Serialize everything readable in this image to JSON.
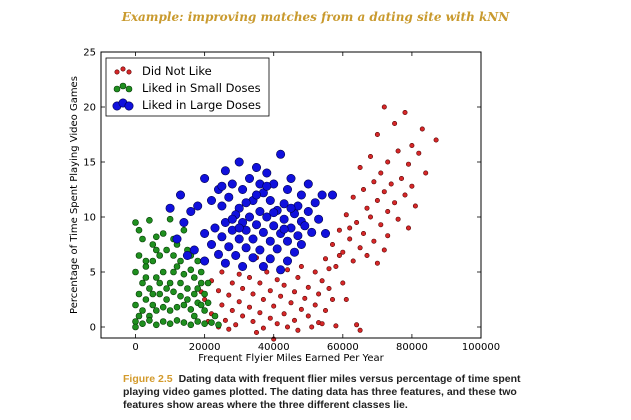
{
  "header": "Example: improving matches from a dating site with kNN",
  "caption": {
    "figure_label": "Figure 2.5",
    "text": "Dating data with frequent flier miles versus percentage of time spent playing video games plotted. The dating data has three features, and these two features show areas where the three different classes lie."
  },
  "chart_data": {
    "type": "scatter",
    "xlabel": "Frequent Flyier Miles Earned Per Year",
    "ylabel": "Percentage of Time Spent Playing Video Games",
    "xlim": [
      -10000,
      100000
    ],
    "ylim": [
      -1,
      25
    ],
    "xticks": [
      0,
      20000,
      40000,
      60000,
      80000,
      100000
    ],
    "yticks": [
      0,
      5,
      10,
      15,
      20,
      25
    ],
    "grid": false,
    "legend_position": "top-left",
    "series": [
      {
        "name": "Did Not Like",
        "color": "#d62728",
        "size": "small",
        "points": [
          [
            72000,
            20
          ],
          [
            78000,
            19.5
          ],
          [
            75000,
            18.5
          ],
          [
            83000,
            18
          ],
          [
            70000,
            17.5
          ],
          [
            87000,
            17
          ],
          [
            80000,
            16.5
          ],
          [
            76000,
            16
          ],
          [
            82000,
            15.8
          ],
          [
            68000,
            15.5
          ],
          [
            73000,
            15
          ],
          [
            79000,
            14.8
          ],
          [
            65000,
            14.5
          ],
          [
            71000,
            14
          ],
          [
            84000,
            14
          ],
          [
            77000,
            13.5
          ],
          [
            69000,
            13.2
          ],
          [
            74000,
            13
          ],
          [
            80000,
            12.8
          ],
          [
            66000,
            12.5
          ],
          [
            72000,
            12.3
          ],
          [
            78000,
            12
          ],
          [
            63000,
            11.8
          ],
          [
            70000,
            11.5
          ],
          [
            75000,
            11.3
          ],
          [
            81000,
            11
          ],
          [
            67000,
            10.8
          ],
          [
            73000,
            10.5
          ],
          [
            61000,
            10.2
          ],
          [
            68000,
            10
          ],
          [
            76000,
            9.8
          ],
          [
            64000,
            9.5
          ],
          [
            71000,
            9.3
          ],
          [
            79000,
            9
          ],
          [
            59000,
            8.8
          ],
          [
            66000,
            8.5
          ],
          [
            73000,
            8.3
          ],
          [
            62000,
            8
          ],
          [
            69000,
            7.8
          ],
          [
            57000,
            7.5
          ],
          [
            65000,
            7.2
          ],
          [
            72000,
            7
          ],
          [
            60000,
            6.8
          ],
          [
            67000,
            6.5
          ],
          [
            55000,
            6.2
          ],
          [
            63000,
            6
          ],
          [
            70000,
            5.8
          ],
          [
            58000,
            5.5
          ],
          [
            48000,
            5.5
          ],
          [
            52000,
            5
          ],
          [
            44000,
            5.2
          ],
          [
            38000,
            5
          ],
          [
            30000,
            4.8
          ],
          [
            25000,
            5
          ],
          [
            33000,
            4.5
          ],
          [
            41000,
            4.3
          ],
          [
            47000,
            4.5
          ],
          [
            54000,
            4.2
          ],
          [
            60000,
            4
          ],
          [
            36000,
            4
          ],
          [
            28000,
            4
          ],
          [
            22000,
            4.2
          ],
          [
            43000,
            3.8
          ],
          [
            50000,
            3.6
          ],
          [
            56000,
            3.5
          ],
          [
            31000,
            3.5
          ],
          [
            39000,
            3.3
          ],
          [
            24000,
            3.3
          ],
          [
            46000,
            3.2
          ],
          [
            53000,
            3
          ],
          [
            34000,
            3
          ],
          [
            27000,
            2.9
          ],
          [
            42000,
            2.8
          ],
          [
            49000,
            2.6
          ],
          [
            57000,
            2.5
          ],
          [
            20000,
            2.5
          ],
          [
            37000,
            2.5
          ],
          [
            30000,
            2.3
          ],
          [
            45000,
            2.2
          ],
          [
            52000,
            2
          ],
          [
            25000,
            2
          ],
          [
            40000,
            1.9
          ],
          [
            33000,
            1.8
          ],
          [
            48000,
            1.6
          ],
          [
            55000,
            1.5
          ],
          [
            28000,
            1.5
          ],
          [
            36000,
            1.3
          ],
          [
            43000,
            1.2
          ],
          [
            22000,
            1.2
          ],
          [
            50000,
            1
          ],
          [
            31000,
            1
          ],
          [
            39000,
            0.8
          ],
          [
            46000,
            0.6
          ],
          [
            26000,
            0.6
          ],
          [
            34000,
            0.5
          ],
          [
            53000,
            0.4
          ],
          [
            41000,
            0.3
          ],
          [
            29000,
            0.2
          ],
          [
            58000,
            0.1
          ],
          [
            37000,
            -0.1
          ],
          [
            44000,
            0
          ],
          [
            24000,
            0
          ],
          [
            51000,
            0
          ],
          [
            64000,
            0.2
          ],
          [
            65000,
            -0.3
          ],
          [
            54000,
            0.3
          ],
          [
            47000,
            -0.3
          ],
          [
            27000,
            -0.2
          ],
          [
            35000,
            -0.5
          ],
          [
            40000,
            -1.1
          ],
          [
            61000,
            2.5
          ],
          [
            59000,
            6.5
          ],
          [
            62000,
            9
          ],
          [
            35000,
            6.3
          ],
          [
            19000,
            3.2
          ],
          [
            21000,
            0.5
          ],
          [
            56000,
            5.3
          ]
        ]
      },
      {
        "name": "Liked in Small Doses",
        "color": "#1f8f1f",
        "size": "medium",
        "points": [
          [
            0,
            9.5
          ],
          [
            2000,
            8
          ],
          [
            4000,
            9.7
          ],
          [
            6000,
            7
          ],
          [
            1000,
            6.5
          ],
          [
            3000,
            5.5
          ],
          [
            5000,
            6
          ],
          [
            8000,
            8.5
          ],
          [
            10000,
            9.8
          ],
          [
            12000,
            7.5
          ],
          [
            14000,
            8.8
          ],
          [
            16000,
            6.5
          ],
          [
            0,
            5
          ],
          [
            2000,
            4
          ],
          [
            4000,
            3.5
          ],
          [
            6000,
            4.5
          ],
          [
            8000,
            5
          ],
          [
            10000,
            4
          ],
          [
            12000,
            5.5
          ],
          [
            14000,
            4.8
          ],
          [
            16000,
            5.2
          ],
          [
            18000,
            6
          ],
          [
            1000,
            3
          ],
          [
            3000,
            2.5
          ],
          [
            5000,
            2
          ],
          [
            7000,
            3
          ],
          [
            9000,
            2.5
          ],
          [
            11000,
            3.2
          ],
          [
            13000,
            2.8
          ],
          [
            15000,
            3.5
          ],
          [
            17000,
            3
          ],
          [
            19000,
            4
          ],
          [
            20000,
            3
          ],
          [
            0,
            2
          ],
          [
            2000,
            1.5
          ],
          [
            4000,
            1
          ],
          [
            6000,
            1.5
          ],
          [
            8000,
            1.8
          ],
          [
            10000,
            1.5
          ],
          [
            12000,
            1.8
          ],
          [
            14000,
            2
          ],
          [
            16000,
            1.6
          ],
          [
            18000,
            2.2
          ],
          [
            0,
            0.5
          ],
          [
            2000,
            0.3
          ],
          [
            4000,
            0.6
          ],
          [
            6000,
            0.2
          ],
          [
            8000,
            0.5
          ],
          [
            10000,
            0.3
          ],
          [
            12000,
            0.6
          ],
          [
            14000,
            0.4
          ],
          [
            16000,
            0.2
          ],
          [
            18000,
            0.5
          ],
          [
            20000,
            0.3
          ],
          [
            22000,
            0.4
          ],
          [
            24000,
            0.2
          ],
          [
            0,
            0
          ],
          [
            1000,
            1
          ],
          [
            3000,
            6
          ],
          [
            5000,
            7.5
          ],
          [
            7000,
            6.5
          ],
          [
            9000,
            7
          ],
          [
            11000,
            6.5
          ],
          [
            13000,
            6
          ],
          [
            15000,
            7
          ],
          [
            17000,
            4.5
          ],
          [
            19000,
            5
          ],
          [
            21000,
            4
          ],
          [
            20000,
            1.5
          ],
          [
            18000,
            3.5
          ],
          [
            3000,
            4.5
          ],
          [
            7000,
            4
          ],
          [
            11000,
            5
          ],
          [
            13000,
            4
          ],
          [
            9000,
            3.5
          ],
          [
            5000,
            3
          ],
          [
            15000,
            2.5
          ],
          [
            17000,
            1
          ],
          [
            19000,
            2
          ],
          [
            1000,
            8.8
          ],
          [
            6000,
            8.2
          ],
          [
            11000,
            8
          ],
          [
            23000,
            1
          ],
          [
            21000,
            2.2
          ]
        ]
      },
      {
        "name": "Liked in Large Doses",
        "color": "#1010dd",
        "size": "large",
        "points": [
          [
            42000,
            15.7
          ],
          [
            30000,
            15
          ],
          [
            35000,
            14.5
          ],
          [
            26000,
            14.2
          ],
          [
            20000,
            13.5
          ],
          [
            38000,
            14
          ],
          [
            45000,
            13.5
          ],
          [
            50000,
            13
          ],
          [
            33000,
            13.5
          ],
          [
            28000,
            13
          ],
          [
            40000,
            13
          ],
          [
            24000,
            12.5
          ],
          [
            31000,
            12.5
          ],
          [
            37000,
            12.2
          ],
          [
            44000,
            12.5
          ],
          [
            48000,
            12
          ],
          [
            54000,
            12
          ],
          [
            22000,
            11.5
          ],
          [
            27000,
            11.8
          ],
          [
            34000,
            11.5
          ],
          [
            39000,
            11.5
          ],
          [
            43000,
            11.2
          ],
          [
            47000,
            11
          ],
          [
            52000,
            11.3
          ],
          [
            18000,
            11
          ],
          [
            25000,
            11
          ],
          [
            30000,
            10.8
          ],
          [
            36000,
            10.5
          ],
          [
            41000,
            10.6
          ],
          [
            46000,
            10.3
          ],
          [
            50000,
            10.5
          ],
          [
            29000,
            10.2
          ],
          [
            33000,
            10
          ],
          [
            38000,
            10
          ],
          [
            43000,
            9.8
          ],
          [
            48000,
            9.6
          ],
          [
            26000,
            9.5
          ],
          [
            31000,
            9.5
          ],
          [
            35000,
            9.3
          ],
          [
            40000,
            9.2
          ],
          [
            45000,
            9
          ],
          [
            49000,
            9.2
          ],
          [
            23000,
            9
          ],
          [
            28000,
            8.8
          ],
          [
            32000,
            8.8
          ],
          [
            37000,
            8.6
          ],
          [
            42000,
            8.5
          ],
          [
            47000,
            8.3
          ],
          [
            51000,
            8.6
          ],
          [
            20000,
            8.5
          ],
          [
            25000,
            8.2
          ],
          [
            30000,
            8
          ],
          [
            34000,
            8
          ],
          [
            39000,
            7.8
          ],
          [
            44000,
            7.8
          ],
          [
            48000,
            7.5
          ],
          [
            22000,
            7.5
          ],
          [
            27000,
            7.3
          ],
          [
            32000,
            7.2
          ],
          [
            36000,
            7
          ],
          [
            41000,
            7.1
          ],
          [
            46000,
            6.8
          ],
          [
            17000,
            7
          ],
          [
            24000,
            6.6
          ],
          [
            29000,
            6.5
          ],
          [
            34000,
            6.3
          ],
          [
            39000,
            6.2
          ],
          [
            44000,
            6
          ],
          [
            15000,
            6.5
          ],
          [
            20000,
            6
          ],
          [
            26000,
            5.8
          ],
          [
            31000,
            5.5
          ],
          [
            37000,
            5.5
          ],
          [
            42000,
            5.2
          ],
          [
            12000,
            8
          ],
          [
            14000,
            9.5
          ],
          [
            16000,
            10.5
          ],
          [
            10000,
            10.8
          ],
          [
            13000,
            12
          ],
          [
            55000,
            8.5
          ],
          [
            53000,
            9.8
          ],
          [
            57000,
            12
          ],
          [
            36000,
            13
          ],
          [
            32000,
            11.3
          ],
          [
            45000,
            10.8
          ],
          [
            28000,
            9.8
          ],
          [
            40000,
            10.4
          ],
          [
            35000,
            12
          ],
          [
            43000,
            8.9
          ],
          [
            30000,
            9
          ],
          [
            38000,
            12.8
          ],
          [
            25000,
            12.8
          ]
        ]
      }
    ]
  }
}
